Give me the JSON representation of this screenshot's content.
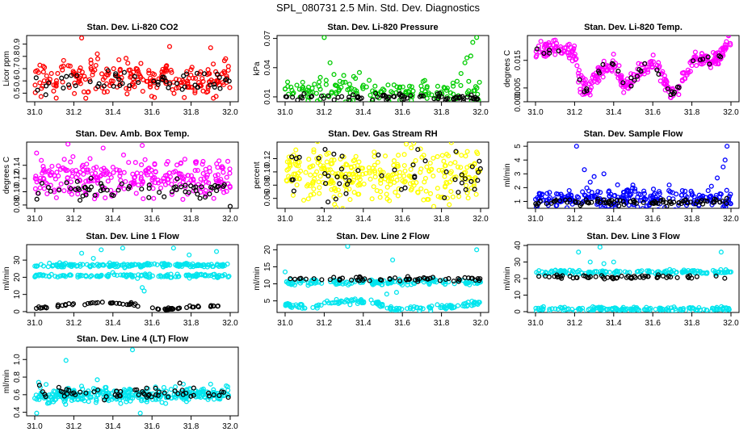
{
  "page": {
    "title": "SPL_080731  2.5 Min. Std. Dev. Diagnostics"
  },
  "colors": {
    "highlight": "#000000",
    "red": "#ff0000",
    "green": "#00cc00",
    "magenta": "#ff00ff",
    "yellow": "#ffff00",
    "blue": "#0000ff",
    "cyan": "#00e5ee"
  },
  "chart_data": [
    {
      "type": "scatter",
      "title": "Stan. Dev. Li-820 CO2",
      "ylabel": "Licor ppm",
      "xlim": [
        31.0,
        32.0
      ],
      "ylim": [
        0.43,
        0.97
      ],
      "xticks": [
        "31.0",
        "31.2",
        "31.4",
        "31.6",
        "31.8",
        "32.0"
      ],
      "yticks": [
        "0.5",
        "0.6",
        "0.7",
        "0.8",
        "0.9"
      ],
      "series": [
        {
          "color": "#ff0000",
          "baseline": 0.62,
          "spread": 0.07,
          "n": 230,
          "outliers": [
            [
              31.24,
              0.95
            ],
            [
              31.69,
              0.88
            ],
            [
              31.9,
              0.87
            ],
            [
              31.11,
              0.46
            ],
            [
              31.32,
              0.82
            ]
          ]
        },
        {
          "color": "#000000",
          "baseline": 0.6,
          "spread": 0.05,
          "n": 55
        }
      ]
    },
    {
      "type": "scatter",
      "title": "Stan. Dev. Li-820 Pressure",
      "ylabel": "kPa",
      "xlim": [
        31.0,
        32.0
      ],
      "ylim": [
        0.005,
        0.073
      ],
      "xticks": [
        "31.0",
        "31.2",
        "31.4",
        "31.6",
        "31.8",
        "32.0"
      ],
      "yticks": [
        "0.01",
        "0.04",
        "0.07"
      ],
      "series": [
        {
          "color": "#00cc00",
          "points": [
            [
              31.0,
              0.018
            ],
            [
              31.03,
              0.02
            ],
            [
              31.06,
              0.022
            ],
            [
              31.09,
              0.025
            ],
            [
              31.12,
              0.02
            ],
            [
              31.15,
              0.023
            ],
            [
              31.18,
              0.03
            ],
            [
              31.21,
              0.027
            ],
            [
              31.2,
              0.071
            ],
            [
              31.23,
              0.045
            ],
            [
              31.25,
              0.033
            ],
            [
              31.28,
              0.026
            ],
            [
              31.3,
              0.032
            ],
            [
              31.33,
              0.023
            ],
            [
              31.36,
              0.029
            ],
            [
              31.38,
              0.035
            ],
            [
              31.4,
              0.022
            ],
            [
              31.43,
              0.027
            ],
            [
              31.46,
              0.021
            ],
            [
              31.5,
              0.018
            ],
            [
              31.55,
              0.014
            ],
            [
              31.6,
              0.012
            ],
            [
              31.65,
              0.01
            ],
            [
              31.7,
              0.011
            ],
            [
              31.75,
              0.012
            ],
            [
              31.8,
              0.015
            ],
            [
              31.83,
              0.019
            ],
            [
              31.86,
              0.021
            ],
            [
              31.88,
              0.026
            ],
            [
              31.9,
              0.034
            ],
            [
              31.92,
              0.045
            ],
            [
              31.93,
              0.05
            ],
            [
              31.95,
              0.052
            ],
            [
              31.96,
              0.066
            ],
            [
              31.98,
              0.071
            ]
          ],
          "baseline": 0.015,
          "spread": 0.006,
          "n": 140
        },
        {
          "color": "#000000",
          "baseline": 0.0095,
          "spread": 0.0018,
          "n": 75
        }
      ]
    },
    {
      "type": "scatter",
      "title": "Stan. Dev. Li-820 Temp.",
      "ylabel": "degrees C",
      "xlim": [
        31.0,
        32.0
      ],
      "ylim": [
        0.0,
        0.024
      ],
      "xticks": [
        "31.0",
        "31.2",
        "31.4",
        "31.6",
        "31.8",
        "32.0"
      ],
      "yticks": [
        "0.000",
        "0.005",
        "0.015"
      ],
      "curve": [
        [
          31.0,
          0.0175
        ],
        [
          31.08,
          0.0195
        ],
        [
          31.15,
          0.0185
        ],
        [
          31.2,
          0.017
        ],
        [
          31.23,
          0.006
        ],
        [
          31.27,
          0.004
        ],
        [
          31.3,
          0.009
        ],
        [
          31.35,
          0.012
        ],
        [
          31.4,
          0.0135
        ],
        [
          31.45,
          0.006
        ],
        [
          31.5,
          0.008
        ],
        [
          31.55,
          0.012
        ],
        [
          31.6,
          0.014
        ],
        [
          31.65,
          0.009
        ],
        [
          31.7,
          0.0025
        ],
        [
          31.75,
          0.008
        ],
        [
          31.8,
          0.015
        ],
        [
          31.85,
          0.016
        ],
        [
          31.9,
          0.0145
        ],
        [
          31.95,
          0.017
        ],
        [
          32.0,
          0.023
        ]
      ],
      "series": [
        {
          "color": "#ff00ff",
          "spread": 0.0015,
          "n": 320
        },
        {
          "color": "#000000",
          "spread": 0.0008,
          "n": 40
        }
      ]
    },
    {
      "type": "scatter",
      "title": "Stan. Dev. Amb. Box Temp.",
      "ylabel": "degrees C",
      "xlim": [
        31.0,
        32.0
      ],
      "ylim": [
        0.075,
        0.175
      ],
      "xticks": [
        "31.0",
        "31.2",
        "31.4",
        "31.6",
        "31.8",
        "32.0"
      ],
      "yticks": [
        "0.08",
        "0.10",
        "0.12",
        "0.14"
      ],
      "series": [
        {
          "color": "#ff00ff",
          "baseline": 0.122,
          "spread": 0.016,
          "n": 280,
          "outliers": [
            [
              31.17,
              0.172
            ],
            [
              31.55,
              0.17
            ],
            [
              31.35,
              0.166
            ]
          ]
        },
        {
          "color": "#000000",
          "baseline": 0.103,
          "spread": 0.006,
          "n": 65,
          "outliers": [
            [
              32.0,
              0.078
            ]
          ]
        }
      ]
    },
    {
      "type": "scatter",
      "title": "Stan. Dev. Gas Stream RH",
      "ylabel": "percent",
      "xlim": [
        31.0,
        32.0
      ],
      "ylim": [
        0.045,
        0.145
      ],
      "xticks": [
        "31.0",
        "31.2",
        "31.4",
        "31.6",
        "31.8",
        "32.0"
      ],
      "yticks": [
        "0.06",
        "0.08",
        "0.10",
        "0.12"
      ],
      "series": [
        {
          "color": "#ffff00",
          "baseline": 0.095,
          "spread": 0.02,
          "n": 320,
          "outliers": [
            [
              31.62,
              0.142
            ],
            [
              31.98,
              0.13
            ]
          ]
        },
        {
          "color": "#000000",
          "baseline": 0.095,
          "spread": 0.02,
          "n": 50
        }
      ]
    },
    {
      "type": "scatter",
      "title": "Stan. Dev. Sample Flow",
      "ylabel": "ml/min",
      "xlim": [
        31.0,
        32.0
      ],
      "ylim": [
        0.5,
        5.3
      ],
      "xticks": [
        "31.0",
        "31.2",
        "31.4",
        "31.6",
        "31.8",
        "32.0"
      ],
      "yticks": [
        "1",
        "2",
        "3",
        "4",
        "5"
      ],
      "series": [
        {
          "color": "#0000ff",
          "baseline": 1.2,
          "spread": 0.35,
          "n": 260,
          "outliers": [
            [
              31.21,
              5.0
            ],
            [
              31.98,
              5.0
            ],
            [
              31.3,
              2.8
            ],
            [
              31.35,
              3.0
            ],
            [
              31.28,
              2.4
            ],
            [
              31.42,
              2.2
            ],
            [
              31.97,
              4.0
            ],
            [
              31.96,
              3.5
            ],
            [
              31.93,
              2.7
            ],
            [
              31.9,
              2.1
            ],
            [
              31.25,
              3.3
            ]
          ]
        },
        {
          "color": "#000000",
          "baseline": 0.95,
          "spread": 0.12,
          "n": 90
        }
      ]
    },
    {
      "type": "scatter",
      "title": "Stan. Dev. Line 1 Flow",
      "ylabel": "ml/min",
      "xlim": [
        31.0,
        32.0
      ],
      "ylim": [
        -0.5,
        39
      ],
      "xticks": [
        "31.0",
        "31.2",
        "31.4",
        "31.6",
        "31.8",
        "32.0"
      ],
      "yticks": [
        "0",
        "10",
        "20",
        "30"
      ],
      "series": [
        {
          "color": "#00e5ee",
          "bands": [
            27.0,
            21.0
          ],
          "spread": 0.6,
          "n": 300,
          "outliers": [
            [
              31.24,
              34
            ],
            [
              31.3,
              31
            ],
            [
              31.34,
              36
            ],
            [
              31.45,
              37
            ],
            [
              31.55,
              14
            ],
            [
              31.56,
              12
            ],
            [
              31.79,
              33
            ],
            [
              31.93,
              35
            ],
            [
              31.71,
              37
            ]
          ]
        },
        {
          "color": "#000000",
          "curve": [
            [
              31.0,
              2.0
            ],
            [
              31.2,
              4.0
            ],
            [
              31.35,
              5.5
            ],
            [
              31.5,
              4.5
            ],
            [
              31.65,
              1.0
            ],
            [
              31.8,
              2.5
            ],
            [
              32.0,
              4.0
            ]
          ],
          "spread": 0.4,
          "n": 70
        }
      ]
    },
    {
      "type": "scatter",
      "title": "Stan. Dev. Line 2 Flow",
      "ylabel": "ml/min",
      "xlim": [
        31.0,
        32.0
      ],
      "ylim": [
        1.6,
        21.5
      ],
      "xticks": [
        "31.0",
        "31.2",
        "31.4",
        "31.6",
        "31.8",
        "32.0"
      ],
      "yticks": [
        "5",
        "10",
        "15",
        "20"
      ],
      "series": [
        {
          "color": "#00e5ee",
          "bands": [
            10.5
          ],
          "curveBand": [
            [
              31.0,
              4.0
            ],
            [
              31.1,
              3.0
            ],
            [
              31.3,
              5.0
            ],
            [
              31.45,
              4.5
            ],
            [
              31.55,
              2.5
            ],
            [
              31.8,
              3.0
            ],
            [
              32.0,
              4.5
            ]
          ],
          "spread": 0.4,
          "n": 300,
          "outliers": [
            [
              31.32,
              21
            ],
            [
              31.98,
              20
            ],
            [
              31.55,
              17
            ],
            [
              31.52,
              7.0
            ],
            [
              31.57,
              7.5
            ],
            [
              31.0,
              13.5
            ]
          ]
        },
        {
          "color": "#000000",
          "baseline": 11.5,
          "spread": 0.35,
          "n": 60
        }
      ]
    },
    {
      "type": "scatter",
      "title": "Stan. Dev. Line 3 Flow",
      "ylabel": "ml/min",
      "xlim": [
        31.0,
        32.0
      ],
      "ylim": [
        -0.5,
        40.5
      ],
      "xticks": [
        "31.0",
        "31.2",
        "31.4",
        "31.6",
        "31.8",
        "32.0"
      ],
      "yticks": [
        "0",
        "10",
        "20",
        "30",
        "40"
      ],
      "series": [
        {
          "color": "#00e5ee",
          "bands": [
            24.0,
            1.5
          ],
          "spread": 0.7,
          "n": 320,
          "outliers": [
            [
              31.22,
              36
            ],
            [
              31.33,
              39
            ],
            [
              31.4,
              30
            ],
            [
              31.95,
              36
            ],
            [
              31.28,
              30
            ],
            [
              31.35,
              29
            ]
          ]
        },
        {
          "color": "#000000",
          "baseline": 21.0,
          "spread": 0.6,
          "n": 60
        }
      ]
    },
    {
      "type": "scatter",
      "title": "Stan. Dev. Line 4 (LT) Flow",
      "ylabel": "ml/min",
      "xlim": [
        31.0,
        32.0
      ],
      "ylim": [
        0.36,
        1.14
      ],
      "xticks": [
        "31.0",
        "31.2",
        "31.4",
        "31.6",
        "31.8",
        "32.0"
      ],
      "yticks": [
        "0.4",
        "0.6",
        "0.8",
        "1.0"
      ],
      "series": [
        {
          "color": "#00e5ee",
          "baseline": 0.6,
          "spread": 0.04,
          "n": 320,
          "outliers": [
            [
              31.5,
              1.11
            ],
            [
              31.16,
              0.99
            ],
            [
              31.01,
              0.39
            ],
            [
              31.54,
              0.39
            ],
            [
              31.02,
              0.74
            ],
            [
              31.32,
              0.77
            ],
            [
              31.44,
              0.5
            ],
            [
              31.67,
              0.5
            ],
            [
              31.76,
              0.72
            ],
            [
              31.9,
              0.72
            ],
            [
              31.98,
              0.7
            ]
          ]
        },
        {
          "color": "#000000",
          "baseline": 0.61,
          "spread": 0.04,
          "n": 60
        }
      ]
    }
  ]
}
